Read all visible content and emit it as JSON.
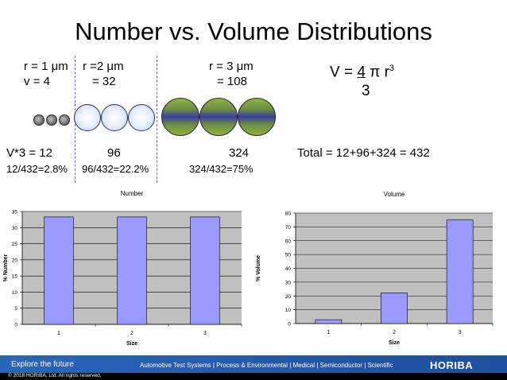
{
  "title": "Number vs. Volume Distributions",
  "labels": {
    "r1": "r = 1 μm",
    "v1": "v = 4",
    "r2": "r =2 μm",
    "v2": "= 32",
    "r3": "r = 3 μm",
    "v3": "= 108",
    "vx3": "V*3 = 12",
    "val96": "96",
    "val324": "324",
    "pct1": "12/432=2.8%",
    "pct2": "96/432=22.2%",
    "pct3": "324/432=75%",
    "total": "Total = 12+96+324 = 432"
  },
  "formula": {
    "lhs": "V = ",
    "numerator": "4",
    "pi": "π",
    "r": " r",
    "exponent": "3",
    "denominator": "3"
  },
  "colors": {
    "bar_fill": "#9999ff",
    "chart_bg": "#c0c0c0",
    "footer_blue": "#2a62b5"
  },
  "chart_data": [
    {
      "type": "bar",
      "title": "Number",
      "categories": [
        "1",
        "2",
        "3"
      ],
      "values": [
        33.3,
        33.3,
        33.3
      ],
      "xlabel": "Size",
      "ylabel": "% Number",
      "ylim": [
        0,
        35
      ],
      "yticks": [
        0,
        5,
        10,
        15,
        20,
        25,
        30,
        35
      ],
      "ytick_labels": [
        "0",
        "5",
        "10",
        "15",
        "20",
        "25",
        "30",
        "35"
      ],
      "grid": true
    },
    {
      "type": "bar",
      "title": "Volume",
      "categories": [
        "1",
        "2",
        "3"
      ],
      "values": [
        2.8,
        22.2,
        75
      ],
      "xlabel": "Size",
      "ylabel": "% Volume",
      "ylim": [
        0,
        80
      ],
      "yticks": [
        0,
        10,
        20,
        30,
        40,
        50,
        60,
        70,
        80
      ],
      "ytick_labels": [
        "0",
        "10",
        "20",
        "30",
        "40",
        "50",
        "60",
        "70",
        "80"
      ],
      "grid": true
    }
  ],
  "footer": {
    "tagline": "Explore the future",
    "links": [
      "Automotive Test Systems",
      "Process & Environmental",
      "Medical",
      "Semiconductor",
      "Scientific"
    ],
    "separator": "|",
    "brand": "HORIBA",
    "copyright": "© 2018 HORIBA, Ltd. All rights reserved."
  }
}
